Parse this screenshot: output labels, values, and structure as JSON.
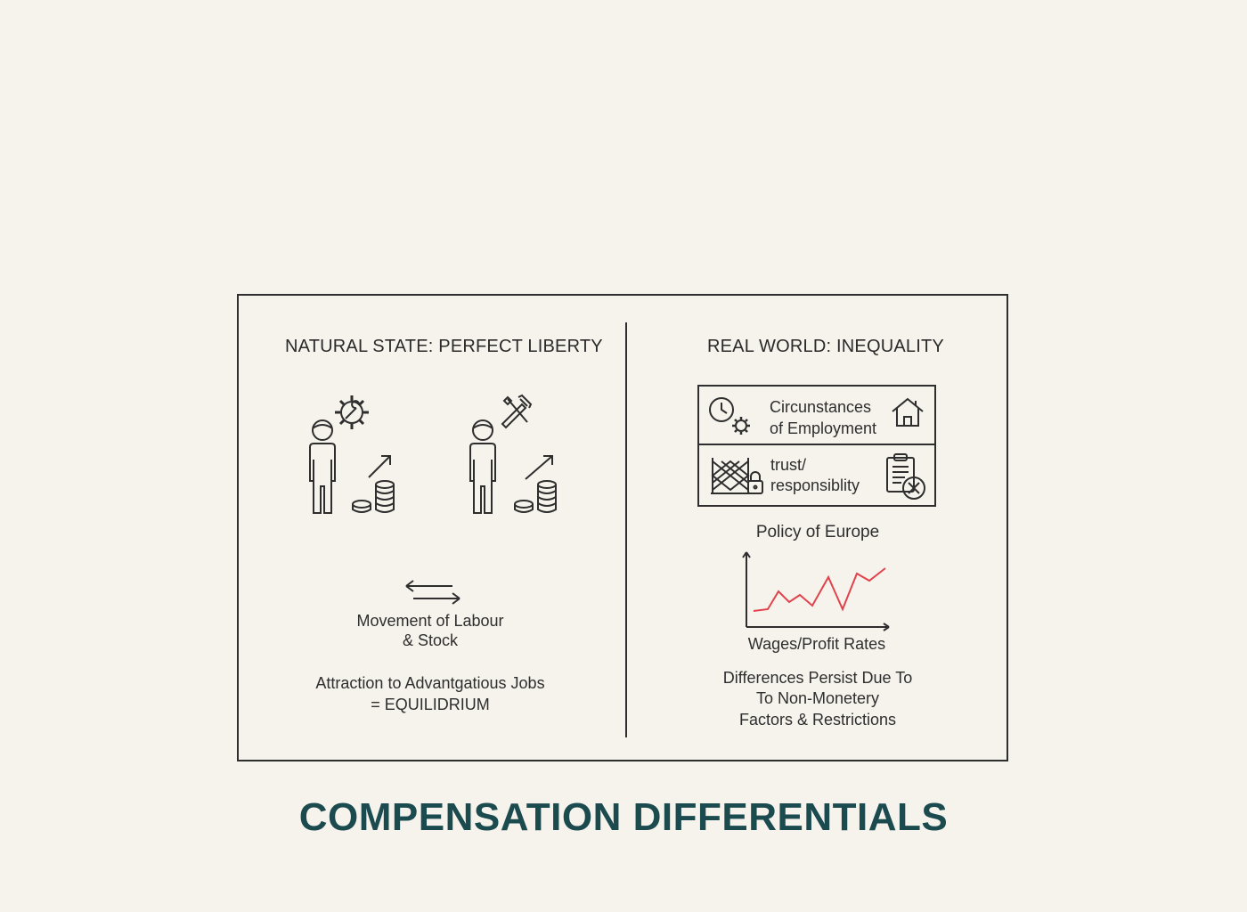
{
  "left_panel": {
    "heading": "NATURAL STATE: PERFECT LIBERTY",
    "movement_line1": "Movement of Labour",
    "movement_line2": "& Stock",
    "attraction_line1": "Attraction to Advantgatious Jobs",
    "attraction_line2": "= EQUILIDRIUM"
  },
  "right_panel": {
    "heading": "REAL WORLD: INEQUALITY",
    "box_row1_line1": "Circunstances",
    "box_row1_line2": "of Employment",
    "box_row2_line1": "trust/",
    "box_row2_line2": "responsiblity",
    "policy_label": "Policy of Europe",
    "chart_xlabel": "Wages/Profit Rates",
    "diff_line1": "Differences Persist Due To",
    "diff_line2": "To Non-Monetery",
    "diff_line3": "Factors & Restrictions"
  },
  "title": "COMPENSATION DIFFERENTIALS",
  "colors": {
    "title": "#1b4a4f",
    "line": "#e0434b",
    "stroke": "#2e2e2e"
  },
  "icons": [
    "gear-wrench-icon",
    "person-icon",
    "coins-icon",
    "tools-icon",
    "clock-icon",
    "house-icon",
    "fence-icon",
    "lock-icon",
    "clipboard-x-icon",
    "exchange-arrows-icon"
  ]
}
